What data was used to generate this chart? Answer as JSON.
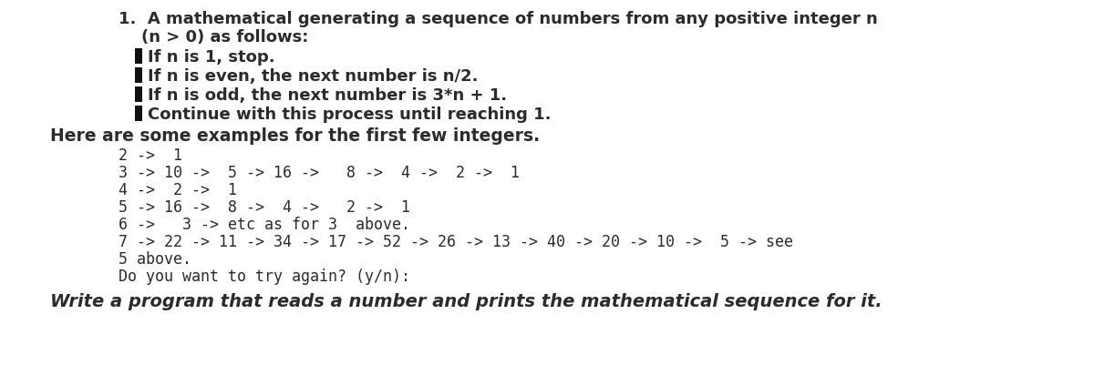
{
  "background_color": "#ffffff",
  "text_color": "#2b2b2b",
  "bar_color": "#111111",
  "line1a": "1.  A mathematical generating a sequence of numbers from any positive integer n",
  "line1b": "    (n > 0) as follows:",
  "bullet_items": [
    "If n is 1, stop.",
    "If n is even, the next number is n/2.",
    "If n is odd, the next number is 3*n + 1.",
    "Continue with this process until reaching 1."
  ],
  "here_line": "Here are some examples for the first few integers.",
  "code_lines": [
    "2 ->  1",
    "3 -> 10 ->  5 -> 16 ->   8 ->  4 ->  2 ->  1",
    "4 ->  2 ->  1",
    "5 -> 16 ->  8 ->  4 ->   2 ->  1",
    "6 ->   3 -> etc as for 3  above.",
    "7 -> 22 -> 11 -> 34 -> 17 -> 52 -> 26 -> 13 -> 40 -> 20 -> 10 ->  5 -> see",
    "5 above.",
    "Do you want to try again? (y/n):"
  ],
  "title_line": "Write a program that reads a number and prints the mathematical sequence for it.",
  "fs_header": 13,
  "fs_here": 13.5,
  "fs_code": 12,
  "fs_title": 14
}
